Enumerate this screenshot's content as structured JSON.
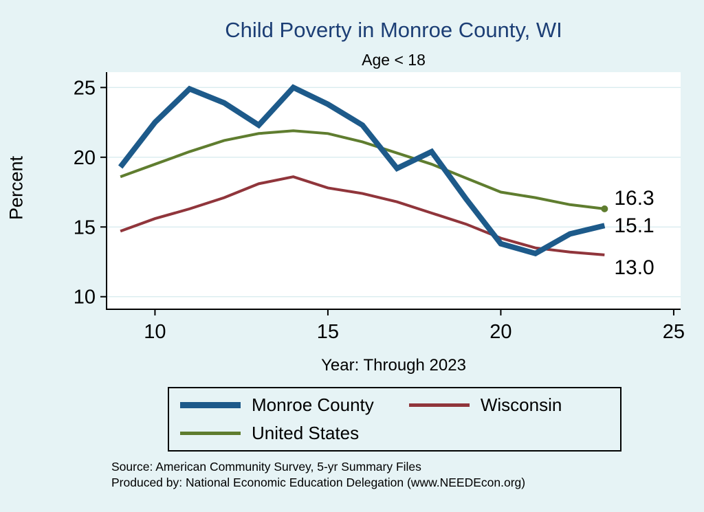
{
  "title": "Child Poverty in Monroe County, WI",
  "subtitle": "Age < 18",
  "ylabel": "Percent",
  "xlabel": "Year: Through 2023",
  "source_line1": "Source: American Community Survey, 5-yr Summary Files",
  "source_line2": "Produced by: National Economic Education Delegation (www.NEEDEcon.org)",
  "colors": {
    "monroe": "#1d5a8a",
    "wisconsin": "#90353b",
    "us": "#5f7d2f",
    "background": "#e6f3f5",
    "plot_background": "#ffffff",
    "grid": "#d9ecef",
    "axis": "#000000",
    "title": "#1c3e75",
    "text": "#000000"
  },
  "chart_data": {
    "type": "line",
    "title": "Child Poverty in Monroe County, WI",
    "subtitle": "Age < 18",
    "xlabel": "Year: Through 2023",
    "ylabel": "Percent",
    "x": [
      9,
      10,
      11,
      12,
      13,
      14,
      15,
      16,
      17,
      18,
      19,
      20,
      21,
      22,
      23
    ],
    "series": [
      {
        "name": "Monroe County",
        "color_key": "monroe",
        "line_width": 8,
        "values": [
          19.3,
          22.5,
          24.9,
          23.9,
          22.3,
          25.0,
          23.8,
          22.3,
          19.2,
          20.4,
          17.0,
          13.8,
          13.1,
          14.5,
          15.1
        ]
      },
      {
        "name": "Wisconsin",
        "color_key": "wisconsin",
        "line_width": 4,
        "values": [
          14.7,
          15.6,
          16.3,
          17.1,
          18.1,
          18.6,
          17.8,
          17.4,
          16.8,
          16.0,
          15.2,
          14.2,
          13.5,
          13.2,
          13.0
        ]
      },
      {
        "name": "United States",
        "color_key": "us",
        "line_width": 4,
        "marker_last": true,
        "values": [
          18.6,
          19.5,
          20.4,
          21.2,
          21.7,
          21.9,
          21.7,
          21.1,
          20.3,
          19.5,
          18.5,
          17.5,
          17.1,
          16.6,
          16.3
        ]
      }
    ],
    "xticks": [
      10,
      15,
      20,
      25
    ],
    "yticks": [
      10,
      15,
      20,
      25
    ],
    "xlim": [
      8.6,
      25.2
    ],
    "ylim": [
      9.1,
      26.1
    ],
    "grid": true,
    "legend_position": "bottom",
    "end_labels": [
      {
        "text": "16.3",
        "series": "United States",
        "dy": -16
      },
      {
        "text": "15.1",
        "series": "Monroe County",
        "dy": 0
      },
      {
        "text": "13.0",
        "series": "Wisconsin",
        "dy": 18
      }
    ]
  },
  "legend": {
    "items": [
      {
        "label": "Monroe County",
        "color_key": "monroe",
        "swatch_height": 9
      },
      {
        "label": "Wisconsin",
        "color_key": "wisconsin",
        "swatch_height": 5
      },
      {
        "label": "United States",
        "color_key": "us",
        "swatch_height": 5
      }
    ]
  }
}
